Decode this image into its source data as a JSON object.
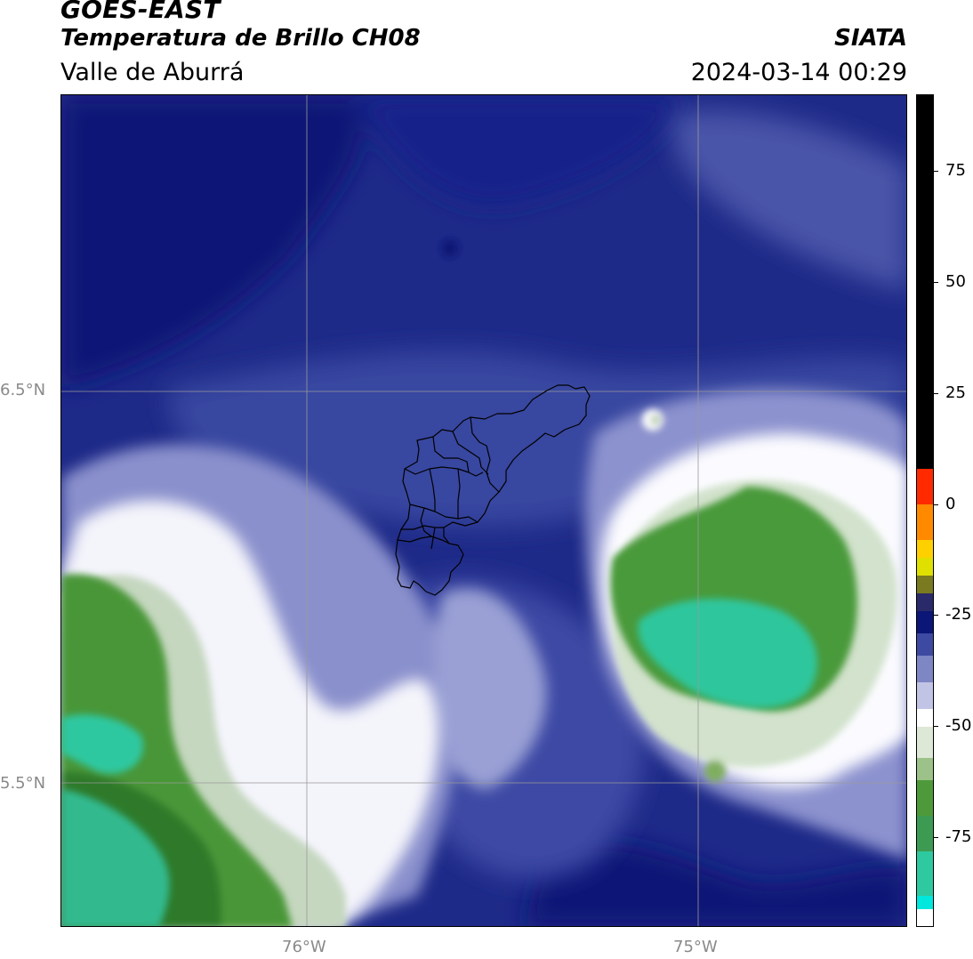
{
  "header": {
    "title_line1": "GOES-EAST",
    "title_line2": "Temperatura de Brillo CH08",
    "region": "Valle de Aburrá",
    "organization": "SIATA",
    "datetime": "2024-03-14 00:29"
  },
  "map": {
    "lat_labels": [
      {
        "text": "6.5°N",
        "value": 6.5
      },
      {
        "text": "5.5°N",
        "value": 5.5
      }
    ],
    "lon_labels": [
      {
        "text": "76°W",
        "value": -76.0
      },
      {
        "text": "75°W",
        "value": -75.0
      }
    ],
    "extent": {
      "lon_min": -76.62,
      "lon_max": -74.53,
      "lat_min": 5.13,
      "lat_max": 7.25
    },
    "colors": {
      "deep_navy": "#0b1676",
      "navy": "#202c8a",
      "mid_blue": "#3e4aa2",
      "periwinkle": "#7e86c4",
      "lavender": "#b6bae0",
      "white": "#ffffff",
      "pale_green": "#c9dbc2",
      "green": "#4e9a3a",
      "dark_green": "#2f7a2c",
      "teal": "#2fc9a0",
      "boundary": "#000000",
      "gridline": "#9a9a9a"
    }
  },
  "colorbar": {
    "ticks": [
      "75",
      "50",
      "25",
      "0",
      "-25",
      "-50",
      "-75"
    ],
    "tick_values": [
      75,
      50,
      25,
      0,
      -25,
      -50,
      -75
    ],
    "range": [
      -95,
      92
    ],
    "segments": [
      {
        "from": -95,
        "to": -91,
        "color": "#ffffff"
      },
      {
        "from": -91,
        "to": -88,
        "color": "#00e8de"
      },
      {
        "from": -88,
        "to": -78,
        "color": "#2fc9a0"
      },
      {
        "from": -78,
        "to": -70,
        "color": "#3c9a52"
      },
      {
        "from": -70,
        "to": -62,
        "color": "#4e9a3a"
      },
      {
        "from": -62,
        "to": -57,
        "color": "#9cc28a"
      },
      {
        "from": -57,
        "to": -50,
        "color": "#dde8d6"
      },
      {
        "from": -50,
        "to": -46,
        "color": "#ffffff"
      },
      {
        "from": -46,
        "to": -40,
        "color": "#c2c4e6"
      },
      {
        "from": -40,
        "to": -34,
        "color": "#7e86c4"
      },
      {
        "from": -34,
        "to": -29,
        "color": "#3e4aa2"
      },
      {
        "from": -29,
        "to": -24,
        "color": "#0b1676"
      },
      {
        "from": -24,
        "to": -20,
        "color": "#2a2a6a"
      },
      {
        "from": -20,
        "to": -16,
        "color": "#7a7a20"
      },
      {
        "from": -16,
        "to": -12,
        "color": "#e0e000"
      },
      {
        "from": -12,
        "to": -8,
        "color": "#ffd000"
      },
      {
        "from": -8,
        "to": 0,
        "color": "#ff8a00"
      },
      {
        "from": 0,
        "to": 8,
        "color": "#ff2a00"
      },
      {
        "from": 8,
        "to": 92,
        "color": "#000000"
      }
    ]
  }
}
